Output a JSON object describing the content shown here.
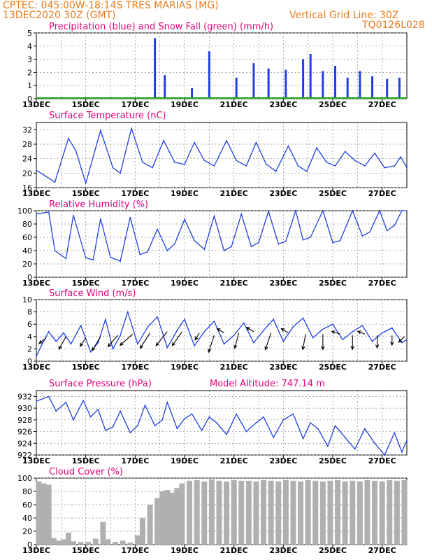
{
  "header": {
    "station": "CPTEC:   045:00W-18:14S   TRES MARIAS (MG)",
    "run": "13DEC2020 30Z (GMT)",
    "grid_note": "Vertical Grid Line: 30Z",
    "code": "TQ0126L028"
  },
  "model_altitude": "Model Altitude: 747.14 m",
  "x_ticks": [
    "13DEC",
    "15DEC",
    "17DEC",
    "19DEC",
    "21DEC",
    "23DEC",
    "25DEC",
    "27DEC"
  ],
  "colors": {
    "series": "#1f3fe0",
    "snow": "#22aa22",
    "cloud": "#b0b0b0",
    "title": "#e0007a",
    "header": "#e87b1c"
  },
  "chart_data": [
    {
      "type": "bar",
      "title": "Precipitation (blue) and Snow Fall (green) (mm/h)",
      "ylim": [
        0,
        5
      ],
      "yticks": [
        "0",
        "1",
        "2",
        "3",
        "4",
        "5"
      ],
      "x_days": [
        0,
        15
      ],
      "series": [
        {
          "color": "#1f3fe0",
          "points": [
            [
              4.8,
              4.6
            ],
            [
              5.2,
              1.8
            ],
            [
              6.3,
              0.8
            ],
            [
              7.0,
              3.6
            ],
            [
              8.1,
              1.6
            ],
            [
              8.8,
              2.7
            ],
            [
              9.4,
              2.3
            ],
            [
              10.1,
              2.2
            ],
            [
              10.8,
              3.0
            ],
            [
              11.1,
              3.4
            ],
            [
              11.6,
              2.1
            ],
            [
              12.1,
              2.5
            ],
            [
              12.6,
              1.6
            ],
            [
              13.1,
              2.1
            ],
            [
              13.6,
              1.7
            ],
            [
              14.2,
              1.5
            ],
            [
              14.7,
              1.6
            ]
          ]
        },
        {
          "color": "#22aa22",
          "points": [
            [
              0,
              0
            ],
            [
              15,
              0
            ]
          ]
        }
      ]
    },
    {
      "type": "line",
      "title": "Surface Temperature (nC)",
      "ylim": [
        16,
        34
      ],
      "yticks": [
        "16",
        "20",
        "24",
        "28",
        "32"
      ],
      "points": [
        [
          0,
          20.8
        ],
        [
          0.3,
          19.5
        ],
        [
          0.75,
          17.5
        ],
        [
          1.3,
          29.6
        ],
        [
          1.6,
          26.2
        ],
        [
          2.0,
          17.2
        ],
        [
          2.6,
          31.8
        ],
        [
          3.1,
          21.5
        ],
        [
          3.4,
          20.0
        ],
        [
          3.85,
          32.4
        ],
        [
          4.3,
          23.0
        ],
        [
          4.7,
          21.5
        ],
        [
          5.15,
          29.0
        ],
        [
          5.6,
          23.0
        ],
        [
          6.0,
          22.4
        ],
        [
          6.4,
          28.5
        ],
        [
          6.8,
          23.5
        ],
        [
          7.2,
          22.0
        ],
        [
          7.7,
          29.0
        ],
        [
          8.1,
          23.5
        ],
        [
          8.5,
          22.0
        ],
        [
          8.9,
          28.5
        ],
        [
          9.3,
          22.5
        ],
        [
          9.7,
          20.5
        ],
        [
          10.2,
          27.5
        ],
        [
          10.6,
          22.0
        ],
        [
          10.95,
          20.5
        ],
        [
          11.35,
          27.0
        ],
        [
          11.75,
          23.0
        ],
        [
          12.1,
          22.0
        ],
        [
          12.5,
          26.0
        ],
        [
          12.9,
          23.5
        ],
        [
          13.3,
          22.0
        ],
        [
          13.7,
          25.5
        ],
        [
          14.1,
          21.5
        ],
        [
          14.5,
          22.0
        ],
        [
          14.75,
          24.5
        ],
        [
          15.0,
          21.5
        ]
      ]
    },
    {
      "type": "line",
      "title": "Relative Humidity (%)",
      "ylim": [
        0,
        100
      ],
      "yticks": [
        "0",
        "20",
        "40",
        "60",
        "80",
        "100"
      ],
      "points": [
        [
          0,
          95
        ],
        [
          0.5,
          98
        ],
        [
          0.75,
          40
        ],
        [
          1.2,
          28
        ],
        [
          1.5,
          93
        ],
        [
          2.0,
          29
        ],
        [
          2.3,
          26
        ],
        [
          2.6,
          88
        ],
        [
          3.0,
          30
        ],
        [
          3.4,
          24
        ],
        [
          3.8,
          90
        ],
        [
          4.2,
          34
        ],
        [
          4.5,
          38
        ],
        [
          4.9,
          72
        ],
        [
          5.3,
          40
        ],
        [
          5.6,
          50
        ],
        [
          6.0,
          87
        ],
        [
          6.4,
          55
        ],
        [
          6.8,
          42
        ],
        [
          7.2,
          92
        ],
        [
          7.6,
          40
        ],
        [
          7.9,
          46
        ],
        [
          8.3,
          95
        ],
        [
          8.7,
          46
        ],
        [
          9.0,
          52
        ],
        [
          9.4,
          99
        ],
        [
          9.8,
          50
        ],
        [
          10.1,
          54
        ],
        [
          10.5,
          100
        ],
        [
          10.8,
          56
        ],
        [
          11.1,
          60
        ],
        [
          11.6,
          100
        ],
        [
          12.0,
          52
        ],
        [
          12.3,
          55
        ],
        [
          12.8,
          100
        ],
        [
          13.2,
          62
        ],
        [
          13.5,
          68
        ],
        [
          13.9,
          100
        ],
        [
          14.2,
          70
        ],
        [
          14.5,
          78
        ],
        [
          14.8,
          100
        ],
        [
          15.0,
          100
        ]
      ]
    },
    {
      "type": "line",
      "title": "Surface Wind (m/s)",
      "ylim": [
        0,
        10
      ],
      "yticks": [
        "0",
        "2",
        "4",
        "6",
        "8",
        "10"
      ],
      "points": [
        [
          0,
          0.8
        ],
        [
          0.2,
          2.5
        ],
        [
          0.5,
          4.8
        ],
        [
          0.8,
          3.2
        ],
        [
          1.1,
          4.6
        ],
        [
          1.4,
          2.8
        ],
        [
          1.8,
          5.8
        ],
        [
          2.2,
          1.5
        ],
        [
          2.5,
          3.0
        ],
        [
          2.8,
          6.8
        ],
        [
          3.1,
          2.0
        ],
        [
          3.4,
          4.2
        ],
        [
          3.7,
          8.0
        ],
        [
          4.1,
          2.8
        ],
        [
          4.5,
          5.5
        ],
        [
          4.9,
          7.2
        ],
        [
          5.3,
          2.2
        ],
        [
          5.7,
          5.0
        ],
        [
          6.0,
          6.8
        ],
        [
          6.4,
          2.5
        ],
        [
          6.8,
          4.8
        ],
        [
          7.2,
          6.5
        ],
        [
          7.6,
          2.8
        ],
        [
          8.0,
          4.2
        ],
        [
          8.4,
          6.2
        ],
        [
          8.8,
          3.0
        ],
        [
          9.2,
          5.0
        ],
        [
          9.6,
          6.8
        ],
        [
          10.0,
          3.2
        ],
        [
          10.4,
          5.6
        ],
        [
          10.8,
          7.0
        ],
        [
          11.2,
          3.8
        ],
        [
          11.6,
          5.2
        ],
        [
          12.0,
          6.0
        ],
        [
          12.4,
          3.5
        ],
        [
          12.8,
          4.8
        ],
        [
          13.2,
          5.8
        ],
        [
          13.6,
          3.2
        ],
        [
          14.0,
          4.6
        ],
        [
          14.4,
          5.4
        ],
        [
          14.8,
          3.0
        ],
        [
          15.0,
          3.5
        ]
      ]
    },
    {
      "type": "line",
      "title": "Surface Pressure (hPa)",
      "ylim": [
        922,
        933
      ],
      "yticks": [
        "922",
        "924",
        "926",
        "928",
        "930",
        "932"
      ],
      "points": [
        [
          0,
          931.2
        ],
        [
          0.5,
          932.0
        ],
        [
          0.8,
          929.5
        ],
        [
          1.2,
          931.0
        ],
        [
          1.5,
          928.0
        ],
        [
          1.9,
          931.3
        ],
        [
          2.2,
          928.5
        ],
        [
          2.5,
          929.8
        ],
        [
          2.8,
          926.2
        ],
        [
          3.1,
          926.8
        ],
        [
          3.4,
          929.5
        ],
        [
          3.8,
          925.8
        ],
        [
          4.1,
          927.0
        ],
        [
          4.4,
          930.5
        ],
        [
          4.8,
          927.0
        ],
        [
          5.1,
          928.0
        ],
        [
          5.3,
          931.0
        ],
        [
          5.7,
          926.5
        ],
        [
          6.0,
          928.2
        ],
        [
          6.3,
          929.0
        ],
        [
          6.7,
          926.2
        ],
        [
          7.0,
          928.5
        ],
        [
          7.3,
          927.5
        ],
        [
          7.7,
          925.5
        ],
        [
          8.1,
          929.0
        ],
        [
          8.5,
          926.0
        ],
        [
          8.9,
          927.5
        ],
        [
          9.2,
          928.5
        ],
        [
          9.6,
          925.0
        ],
        [
          10.0,
          928.0
        ],
        [
          10.4,
          929.0
        ],
        [
          10.8,
          924.8
        ],
        [
          11.1,
          927.5
        ],
        [
          11.4,
          926.5
        ],
        [
          11.8,
          923.5
        ],
        [
          12.1,
          927.0
        ],
        [
          12.5,
          925.0
        ],
        [
          12.9,
          923.0
        ],
        [
          13.3,
          926.5
        ],
        [
          13.7,
          924.0
        ],
        [
          14.1,
          922.0
        ],
        [
          14.5,
          925.8
        ],
        [
          14.8,
          922.5
        ],
        [
          15.0,
          924.5
        ]
      ]
    },
    {
      "type": "bar",
      "title": "Cloud Cover (%)",
      "ylim": [
        0,
        100
      ],
      "yticks": [
        "0",
        "20",
        "40",
        "60",
        "80",
        "100"
      ],
      "points": [
        [
          0.1,
          95
        ],
        [
          0.3,
          92
        ],
        [
          0.5,
          90
        ],
        [
          0.7,
          10
        ],
        [
          0.9,
          6
        ],
        [
          1.1,
          8
        ],
        [
          1.3,
          18
        ],
        [
          1.5,
          5
        ],
        [
          1.8,
          4
        ],
        [
          2.1,
          4
        ],
        [
          2.4,
          9
        ],
        [
          2.7,
          34
        ],
        [
          2.9,
          8
        ],
        [
          3.2,
          4
        ],
        [
          3.5,
          6
        ],
        [
          3.8,
          3
        ],
        [
          4.1,
          14
        ],
        [
          4.3,
          40
        ],
        [
          4.6,
          60
        ],
        [
          4.9,
          70
        ],
        [
          5.1,
          80
        ],
        [
          5.3,
          82
        ],
        [
          5.5,
          78
        ],
        [
          5.7,
          85
        ],
        [
          5.9,
          92
        ],
        [
          6.2,
          96
        ],
        [
          6.5,
          97
        ],
        [
          6.8,
          95
        ],
        [
          7.1,
          98
        ],
        [
          7.4,
          96
        ],
        [
          7.7,
          95
        ],
        [
          8.0,
          97
        ],
        [
          8.3,
          96
        ],
        [
          8.6,
          96
        ],
        [
          8.9,
          95
        ],
        [
          9.2,
          97
        ],
        [
          9.5,
          96
        ],
        [
          9.8,
          95
        ],
        [
          10.1,
          97
        ],
        [
          10.4,
          96
        ],
        [
          10.7,
          95
        ],
        [
          11.0,
          97
        ],
        [
          11.3,
          96
        ],
        [
          11.6,
          95
        ],
        [
          11.9,
          96
        ],
        [
          12.2,
          97
        ],
        [
          12.5,
          95
        ],
        [
          12.8,
          96
        ],
        [
          13.1,
          95
        ],
        [
          13.4,
          97
        ],
        [
          13.7,
          96
        ],
        [
          14.0,
          95
        ],
        [
          14.3,
          97
        ],
        [
          14.6,
          96
        ],
        [
          14.9,
          97
        ]
      ]
    }
  ],
  "wind_arrows": [
    {
      "x": 0.4,
      "y": 3.8,
      "dx": -10,
      "dy": 8
    },
    {
      "x": 1.2,
      "y": 4.0,
      "dx": -10,
      "dy": 18
    },
    {
      "x": 2.0,
      "y": 3.8,
      "dx": -8,
      "dy": 12
    },
    {
      "x": 2.6,
      "y": 4.0,
      "dx": -12,
      "dy": 20
    },
    {
      "x": 3.3,
      "y": 4.2,
      "dx": -14,
      "dy": 16
    },
    {
      "x": 3.9,
      "y": 4.4,
      "dx": -18,
      "dy": 16
    },
    {
      "x": 4.6,
      "y": 4.6,
      "dx": -14,
      "dy": 22
    },
    {
      "x": 5.3,
      "y": 4.8,
      "dx": -16,
      "dy": 20
    },
    {
      "x": 5.9,
      "y": 4.8,
      "dx": -14,
      "dy": 20
    },
    {
      "x": 6.6,
      "y": 4.6,
      "dx": -6,
      "dy": 10
    },
    {
      "x": 7.2,
      "y": 4.2,
      "dx": -8,
      "dy": 24
    },
    {
      "x": 7.6,
      "y": 4.6,
      "dx": -10,
      "dy": -6
    },
    {
      "x": 8.2,
      "y": 4.6,
      "dx": -6,
      "dy": 22
    },
    {
      "x": 8.8,
      "y": 4.8,
      "dx": -10,
      "dy": -6
    },
    {
      "x": 9.5,
      "y": 4.6,
      "dx": -8,
      "dy": 24
    },
    {
      "x": 10.2,
      "y": 4.6,
      "dx": -10,
      "dy": -6
    },
    {
      "x": 10.9,
      "y": 4.4,
      "dx": -4,
      "dy": 22
    },
    {
      "x": 11.6,
      "y": 4.4,
      "dx": 0,
      "dy": 22
    },
    {
      "x": 12.3,
      "y": 4.4,
      "dx": -12,
      "dy": -4
    },
    {
      "x": 12.8,
      "y": 4.2,
      "dx": 0,
      "dy": 20
    },
    {
      "x": 13.3,
      "y": 4.4,
      "dx": -10,
      "dy": -4
    },
    {
      "x": 13.8,
      "y": 4.2,
      "dx": 0,
      "dy": 18
    },
    {
      "x": 14.4,
      "y": 4.2,
      "dx": 0,
      "dy": 14
    },
    {
      "x": 14.9,
      "y": 4.0,
      "dx": -8,
      "dy": 8
    }
  ]
}
